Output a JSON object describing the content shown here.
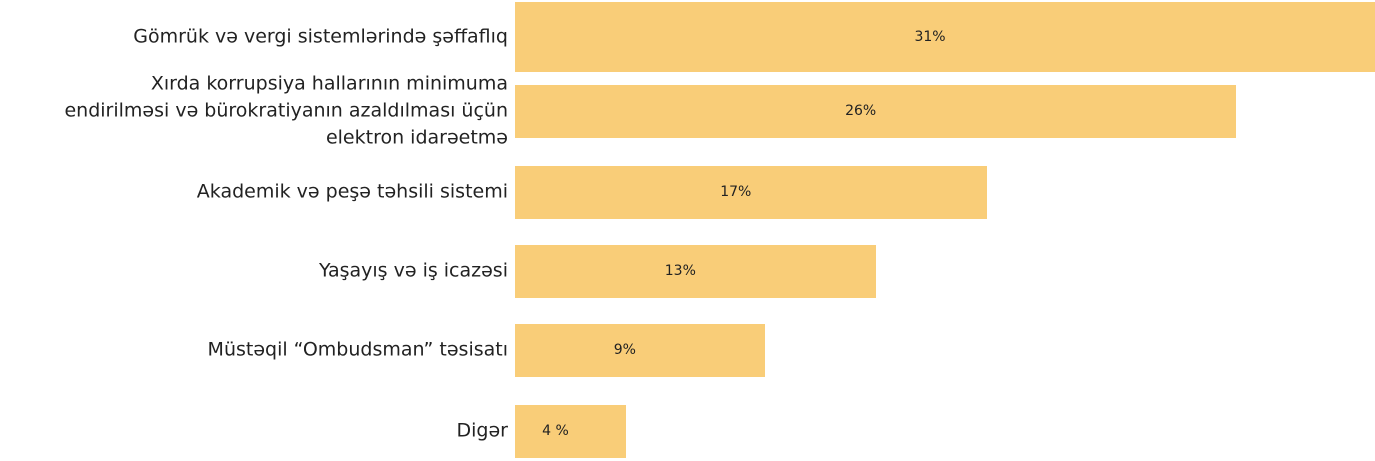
{
  "chart_data": {
    "type": "barh",
    "categories": [
      "Gömrük və vergi sistemlərində şəffaflıq",
      "Xırda korrupsiya hallarının minimuma\nendirilməsi və bürokratiyanın azaldılması üçün\nelektron idarəetmə",
      "Akademik və peşə təhsili sistemi",
      "Yaşayış və iş icazəsi",
      "Müstəqil “Ombudsman” təsisatı",
      "Digər"
    ],
    "values": [
      31,
      26,
      17,
      13,
      9,
      4
    ],
    "value_labels": [
      "31%",
      "26%",
      "17%",
      "13%",
      "9%",
      "4 %"
    ],
    "color": "#f9cd78"
  }
}
